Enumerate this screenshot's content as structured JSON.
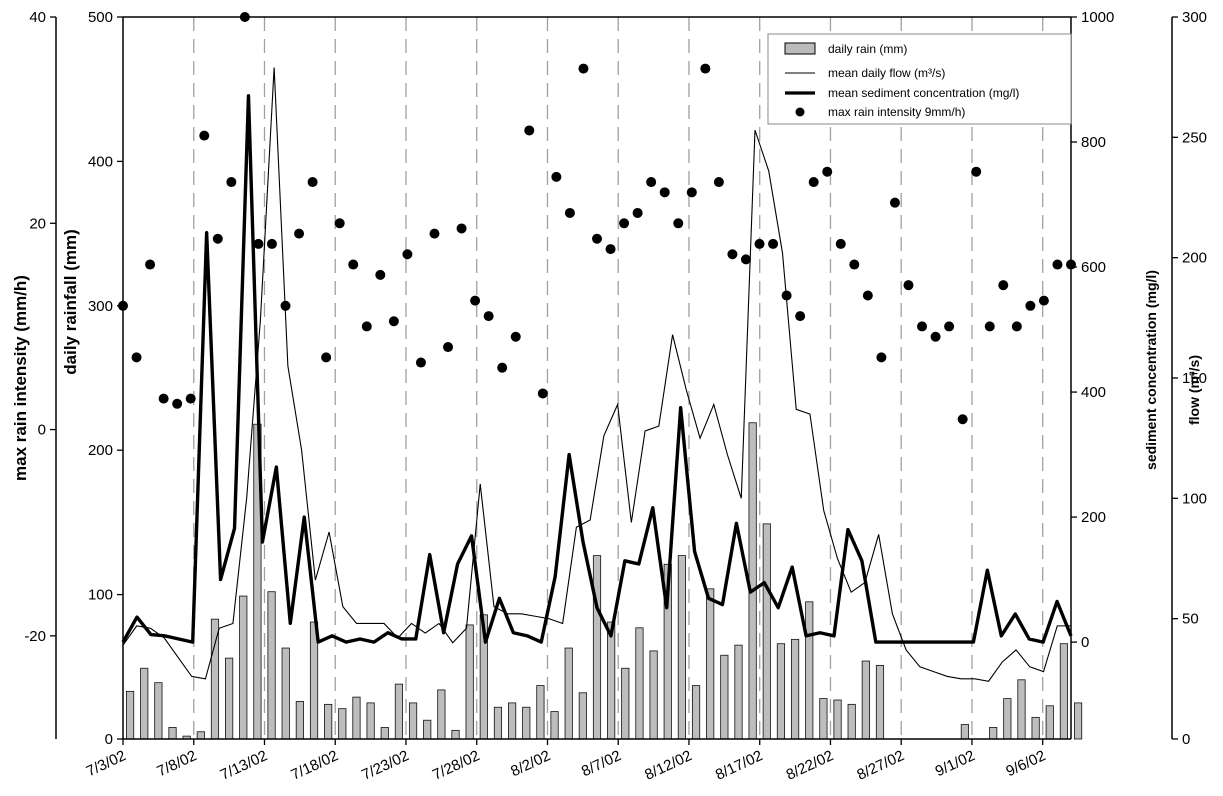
{
  "chart_data": {
    "type": "bar",
    "x_tick_labels": [
      "7/3/02",
      "7/8/02",
      "7/13/02",
      "7/18/02",
      "7/23/02",
      "7/28/02",
      "8/2/02",
      "8/7/02",
      "8/12/02",
      "8/17/02",
      "8/22/02",
      "8/27/02",
      "9/1/02",
      "9/6/02"
    ],
    "axes": {
      "max_rain_intensity": {
        "label": "max rain intensity (mm/h)",
        "ticks": [
          "40",
          "20",
          "0",
          "-20"
        ],
        "range": [
          -30,
          40
        ]
      },
      "daily_rainfall": {
        "label": "daily rainfall (mm)",
        "ticks": [
          "500",
          "400",
          "300",
          "200",
          "100",
          "0"
        ],
        "range": [
          0,
          500
        ]
      },
      "sediment_concentration": {
        "label": "sediment concentration (mg/l)",
        "ticks": [
          "1000",
          "800",
          "600",
          "400",
          "200",
          "0"
        ],
        "range": [
          -155,
          1000
        ]
      },
      "flow": {
        "label": "flow (m³/s)",
        "ticks": [
          "300",
          "250",
          "200",
          "150",
          "100",
          "50",
          "0"
        ],
        "range": [
          0,
          300
        ]
      }
    },
    "legend": [
      "daily rain (mm)",
      "mean daily flow (m³/s)",
      "mean sediment concentration (mg/l)",
      "max rain intensity 9mm/h)"
    ],
    "legend_position": "top-right",
    "grid": "vertical dashed lines every 5 days",
    "series": [
      {
        "name": "daily rain (mm)",
        "axis": "daily_rainfall",
        "values": [
          33,
          49,
          39,
          8,
          2,
          5,
          83,
          56,
          99,
          218,
          102,
          63,
          26,
          81,
          24,
          21,
          29,
          25,
          8,
          38,
          25,
          13,
          34,
          6,
          79,
          86,
          22,
          25,
          22,
          37,
          19,
          63,
          32,
          127,
          81,
          49,
          77,
          61,
          121,
          127,
          37,
          104,
          58,
          65,
          219,
          149,
          66,
          69,
          95,
          28,
          27,
          24,
          54,
          51,
          0,
          0,
          0,
          0,
          0,
          10,
          0,
          8,
          28,
          41,
          15,
          23,
          66,
          25
        ]
      },
      {
        "name": "mean daily flow (m³/s)",
        "axis": "flow",
        "values": [
          39,
          47,
          46,
          42,
          34,
          26,
          25,
          46,
          48,
          100,
          174,
          279,
          155,
          120,
          66,
          86,
          55,
          48,
          48,
          48,
          42,
          48,
          44,
          48,
          40,
          46,
          106,
          55,
          52,
          52,
          51,
          50,
          48,
          88,
          91,
          126,
          139,
          90,
          128,
          130,
          168,
          145,
          125,
          139,
          118,
          100,
          253,
          236,
          202,
          137,
          135,
          95,
          75,
          61,
          65,
          85,
          52,
          37,
          30,
          28,
          26,
          25,
          25,
          24,
          32,
          37,
          30,
          28,
          47,
          47
        ]
      },
      {
        "name": "mean sediment concentration (mg/l)",
        "axis": "sediment_concentration",
        "values": [
          0,
          40,
          12,
          10,
          5,
          0,
          655,
          100,
          182,
          874,
          160,
          280,
          30,
          200,
          0,
          10,
          0,
          5,
          0,
          15,
          5,
          5,
          140,
          15,
          125,
          170,
          0,
          70,
          15,
          10,
          0,
          105,
          300,
          160,
          55,
          10,
          130,
          125,
          215,
          55,
          375,
          145,
          70,
          60,
          190,
          80,
          95,
          55,
          120,
          10,
          15,
          10,
          180,
          130,
          0,
          0,
          0,
          0,
          0,
          0,
          0,
          0,
          115,
          10,
          45,
          5,
          0,
          65,
          10
        ]
      },
      {
        "name": "max rain intensity 9mm/h)",
        "axis": "max_rain_intensity",
        "values": [
          12,
          7,
          16,
          3,
          2.5,
          3,
          28.5,
          18.5,
          24,
          40,
          18,
          18,
          12,
          19,
          24,
          7,
          20,
          16,
          10,
          15,
          10.5,
          17,
          6.5,
          19,
          8,
          19.5,
          12.5,
          11,
          6,
          9,
          29,
          3.5,
          24.5,
          21,
          35,
          18.5,
          17.5,
          20,
          21,
          24,
          23,
          20,
          23,
          35,
          24,
          17,
          16.5,
          18,
          18,
          13,
          11,
          24,
          25,
          18,
          16,
          13,
          7,
          22,
          14,
          10,
          9,
          10,
          1,
          25,
          10,
          14,
          10,
          12,
          12.5,
          16,
          16
        ]
      }
    ]
  }
}
